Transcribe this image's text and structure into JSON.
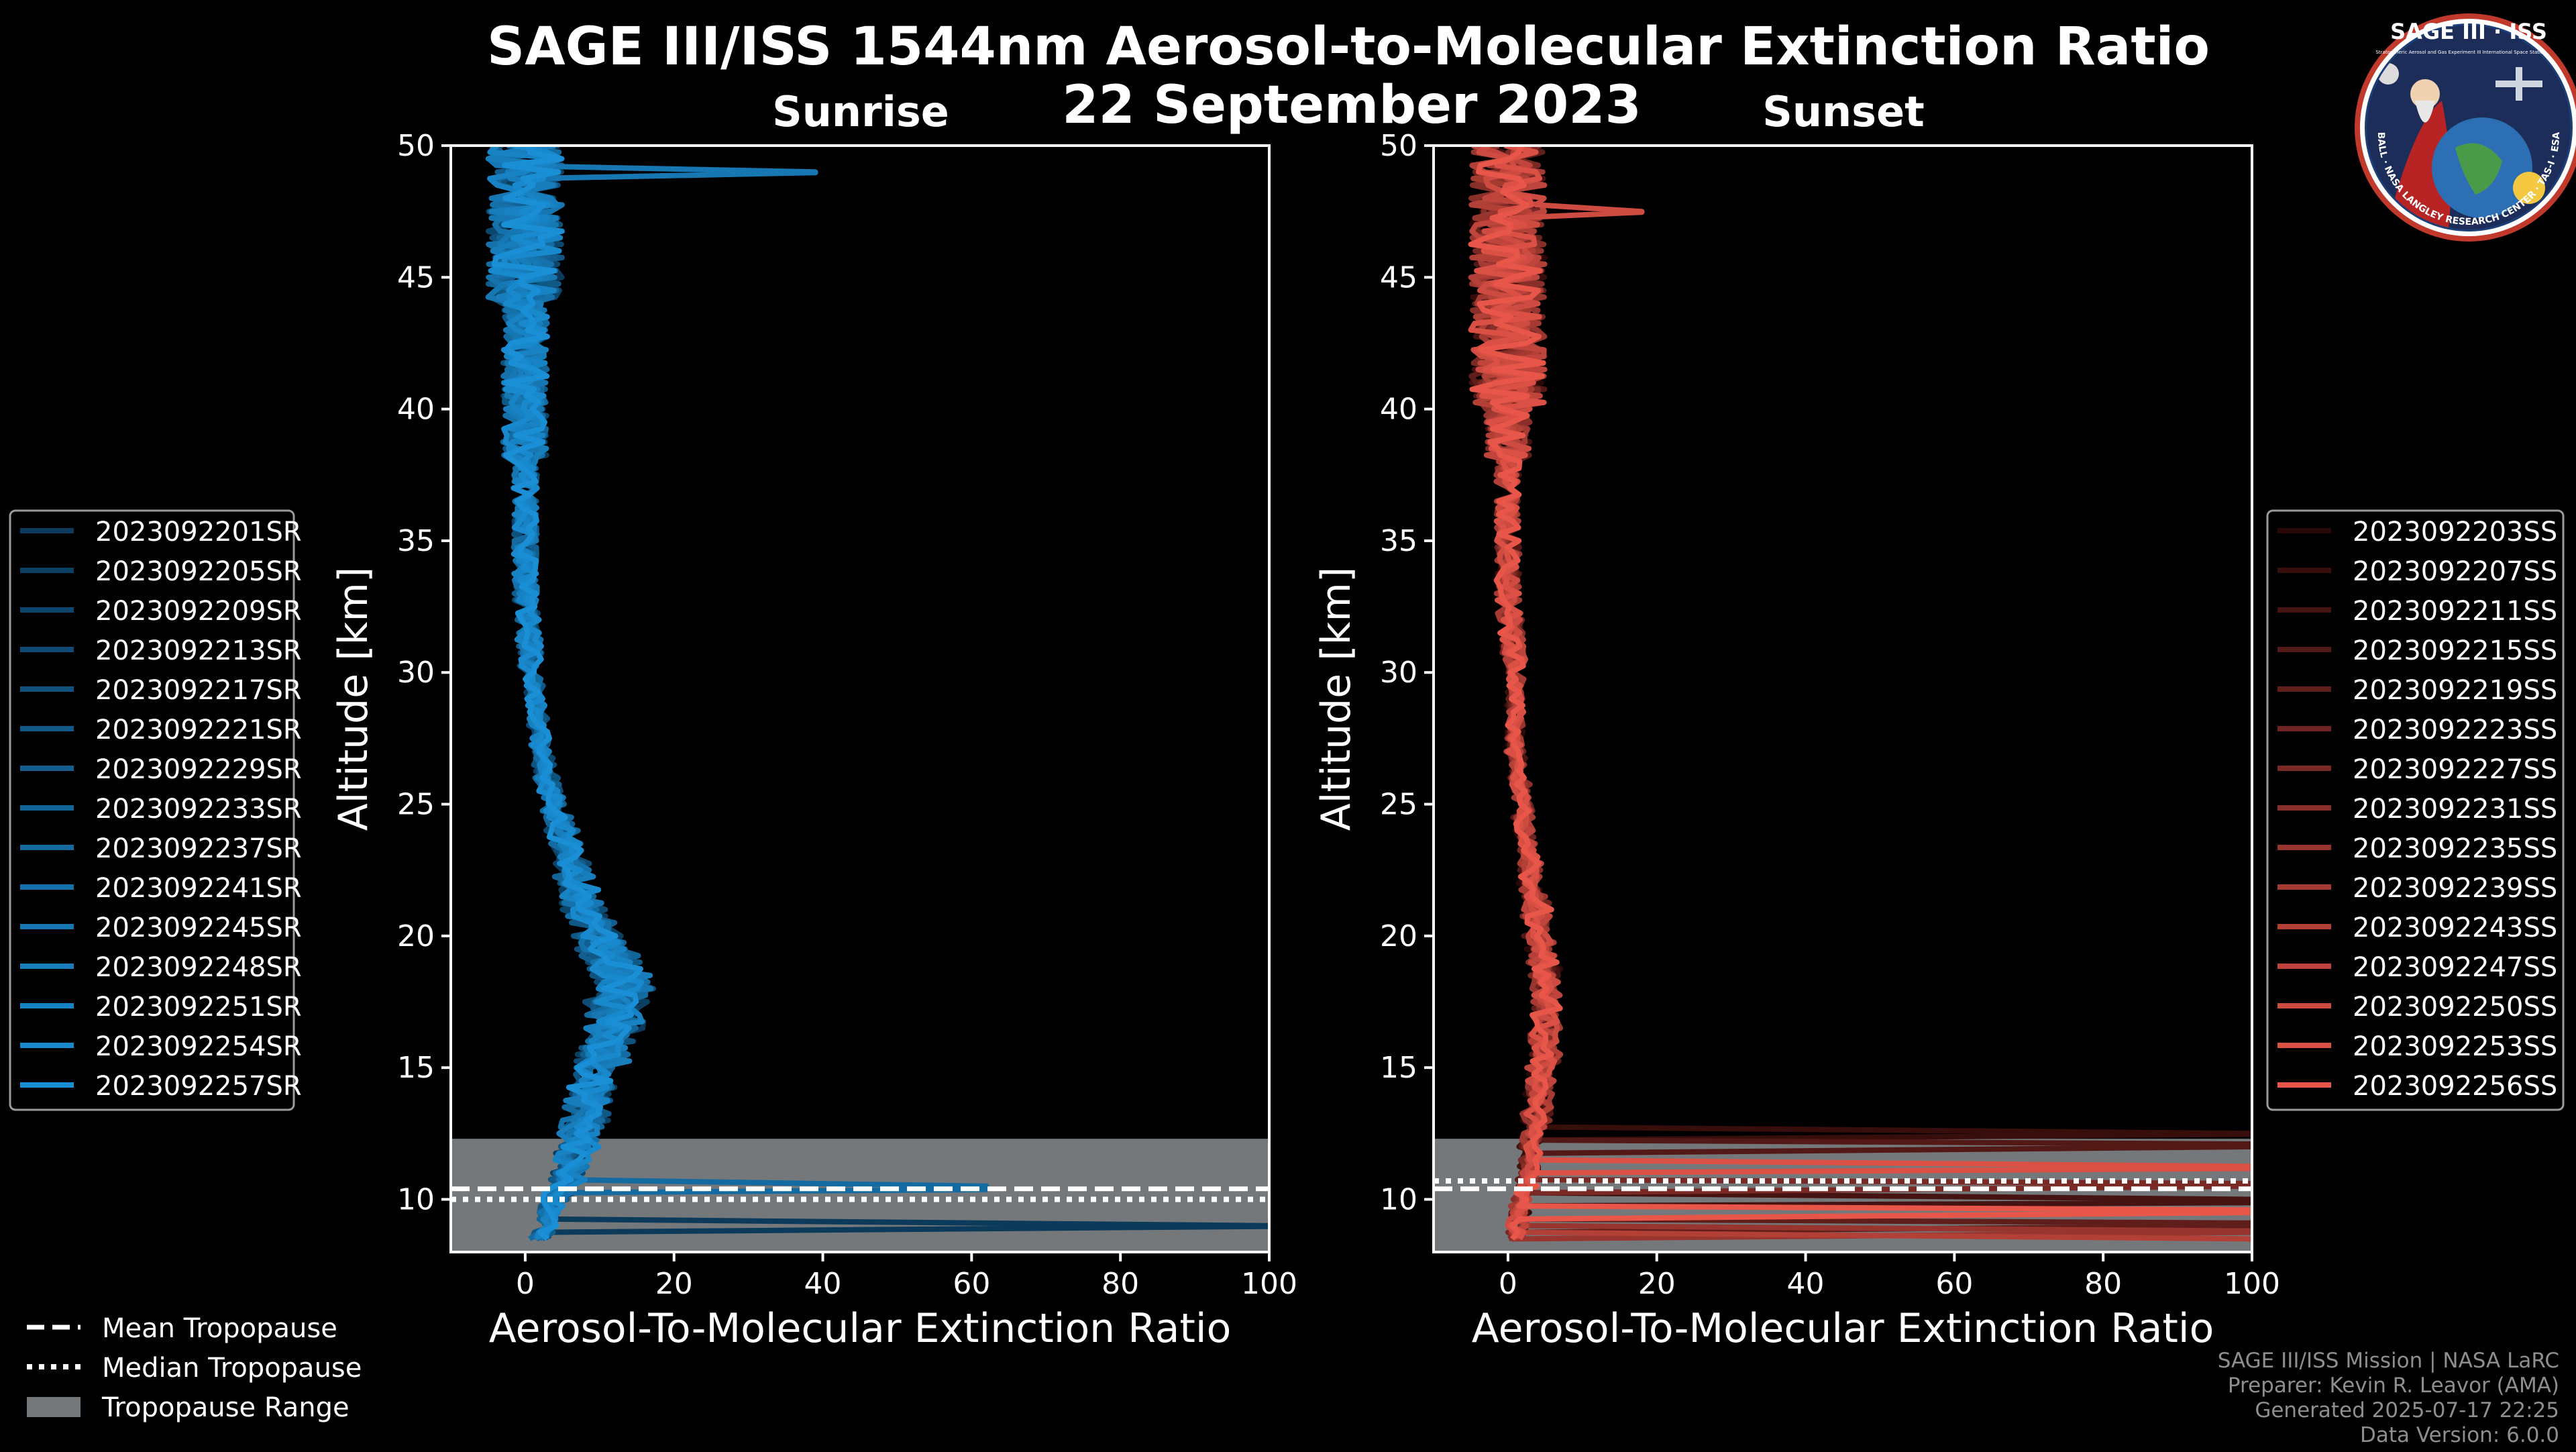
{
  "title_line1": "SAGE III/ISS 1544nm Aerosol-to-Molecular Extinction Ratio",
  "title_line2": "22 September 2023",
  "logo": {
    "top_text": "SAGE III · ISS",
    "subtitle_left": "Stratospheric Aerosol and Gas Experiment III",
    "subtitle_right": "International Space Station",
    "ring_text": "BALL · NASA LANGLEY RESEARCH CENTER · TAS-I · ESA"
  },
  "footer": {
    "line1": "SAGE III/ISS Mission | NASA LaRC",
    "line2": "Preparer: Kevin R. Leavor (AMA)",
    "line3": "Generated 2025-07-17 22:25",
    "line4": "Data Version: 6.0.0"
  },
  "bottom_legend": [
    {
      "label": "Mean Tropopause",
      "style": "dashed"
    },
    {
      "label": "Median Tropopause",
      "style": "dotted"
    },
    {
      "label": "Tropopause Range",
      "style": "patch"
    }
  ],
  "chart_data": [
    {
      "type": "line",
      "subtitle": "Sunrise",
      "xlabel": "Aerosol-To-Molecular Extinction Ratio",
      "ylabel": "Altitude [km]",
      "xlim": [
        -10,
        100
      ],
      "ylim": [
        8,
        50
      ],
      "xticks": [
        0,
        20,
        40,
        60,
        80,
        100
      ],
      "yticks": [
        10,
        15,
        20,
        25,
        30,
        35,
        40,
        45,
        50
      ],
      "tropopause": {
        "mean": 10.4,
        "median": 10.0,
        "range": [
          8.0,
          12.3
        ]
      },
      "series_color_dark": "#0b3a5a",
      "series_color_light": "#1a8fd6",
      "series": [
        {
          "name": "2023092201SR"
        },
        {
          "name": "2023092205SR"
        },
        {
          "name": "2023092209SR"
        },
        {
          "name": "2023092213SR"
        },
        {
          "name": "2023092217SR"
        },
        {
          "name": "2023092221SR"
        },
        {
          "name": "2023092229SR"
        },
        {
          "name": "2023092233SR"
        },
        {
          "name": "2023092237SR"
        },
        {
          "name": "2023092241SR"
        },
        {
          "name": "2023092245SR"
        },
        {
          "name": "2023092248SR"
        },
        {
          "name": "2023092251SR"
        },
        {
          "name": "2023092254SR"
        },
        {
          "name": "2023092257SR"
        }
      ],
      "profile": {
        "altitude": [
          8.5,
          10,
          11,
          12,
          13,
          14,
          15,
          16,
          17,
          18,
          19,
          20,
          21,
          22,
          23,
          24,
          25,
          27,
          30,
          33,
          36,
          40,
          44,
          47,
          50
        ],
        "ratio": [
          2,
          4,
          6,
          7,
          8,
          9,
          10,
          11,
          12,
          13,
          12,
          10,
          8,
          7,
          6,
          5,
          4,
          2,
          1,
          0,
          0,
          0,
          0,
          0,
          0
        ]
      },
      "spikes": [
        {
          "series": "2023092245SR",
          "altitude": 49.0,
          "ratio": 39
        },
        {
          "series": "2023092237SR",
          "altitude": 10.4,
          "ratio": 62
        },
        {
          "series": "2023092201SR",
          "altitude": 9.0,
          "ratio": 100
        }
      ]
    },
    {
      "type": "line",
      "subtitle": "Sunset",
      "xlabel": "Aerosol-To-Molecular Extinction Ratio",
      "ylabel": "Altitude [km]",
      "xlim": [
        -10,
        100
      ],
      "ylim": [
        8,
        50
      ],
      "xticks": [
        0,
        20,
        40,
        60,
        80,
        100
      ],
      "yticks": [
        10,
        15,
        20,
        25,
        30,
        35,
        40,
        45,
        50
      ],
      "tropopause": {
        "mean": 10.4,
        "median": 10.7,
        "range": [
          8.0,
          12.3
        ]
      },
      "series_color_dark": "#2a0808",
      "series_color_light": "#e8564a",
      "series": [
        {
          "name": "2023092203SS"
        },
        {
          "name": "2023092207SS"
        },
        {
          "name": "2023092211SS"
        },
        {
          "name": "2023092215SS"
        },
        {
          "name": "2023092219SS"
        },
        {
          "name": "2023092223SS"
        },
        {
          "name": "2023092227SS"
        },
        {
          "name": "2023092231SS"
        },
        {
          "name": "2023092235SS"
        },
        {
          "name": "2023092239SS"
        },
        {
          "name": "2023092243SS"
        },
        {
          "name": "2023092247SS"
        },
        {
          "name": "2023092250SS"
        },
        {
          "name": "2023092253SS"
        },
        {
          "name": "2023092256SS"
        }
      ],
      "profile": {
        "altitude": [
          8.5,
          10,
          11,
          12,
          13,
          14,
          15,
          16,
          17,
          18,
          19,
          20,
          21,
          22,
          23,
          24,
          25,
          27,
          30,
          33,
          36,
          40,
          44,
          47,
          50
        ],
        "ratio": [
          1,
          2,
          3,
          3,
          4,
          4,
          5,
          5,
          5,
          5,
          5,
          4,
          4,
          3,
          3,
          2,
          2,
          1,
          1,
          0,
          0,
          0,
          0,
          0,
          0
        ]
      },
      "spikes": [
        {
          "series": "2023092250SS",
          "altitude": 47.5,
          "ratio": 18
        },
        {
          "series": "2023092207SS",
          "altitude": 12.5,
          "ratio": 100
        },
        {
          "series": "2023092215SS",
          "altitude": 12.1,
          "ratio": 100
        },
        {
          "series": "2023092253SS",
          "altitude": 11.2,
          "ratio": 100
        },
        {
          "series": "2023092227SS",
          "altitude": 10.6,
          "ratio": 100
        },
        {
          "series": "2023092211SS",
          "altitude": 9.9,
          "ratio": 100
        },
        {
          "series": "2023092256SS",
          "altitude": 9.6,
          "ratio": 100
        },
        {
          "series": "2023092219SS",
          "altitude": 9.1,
          "ratio": 100
        },
        {
          "series": "2023092235SS",
          "altitude": 8.8,
          "ratio": 100
        },
        {
          "series": "2023092243SS",
          "altitude": 8.4,
          "ratio": 100
        }
      ]
    }
  ]
}
